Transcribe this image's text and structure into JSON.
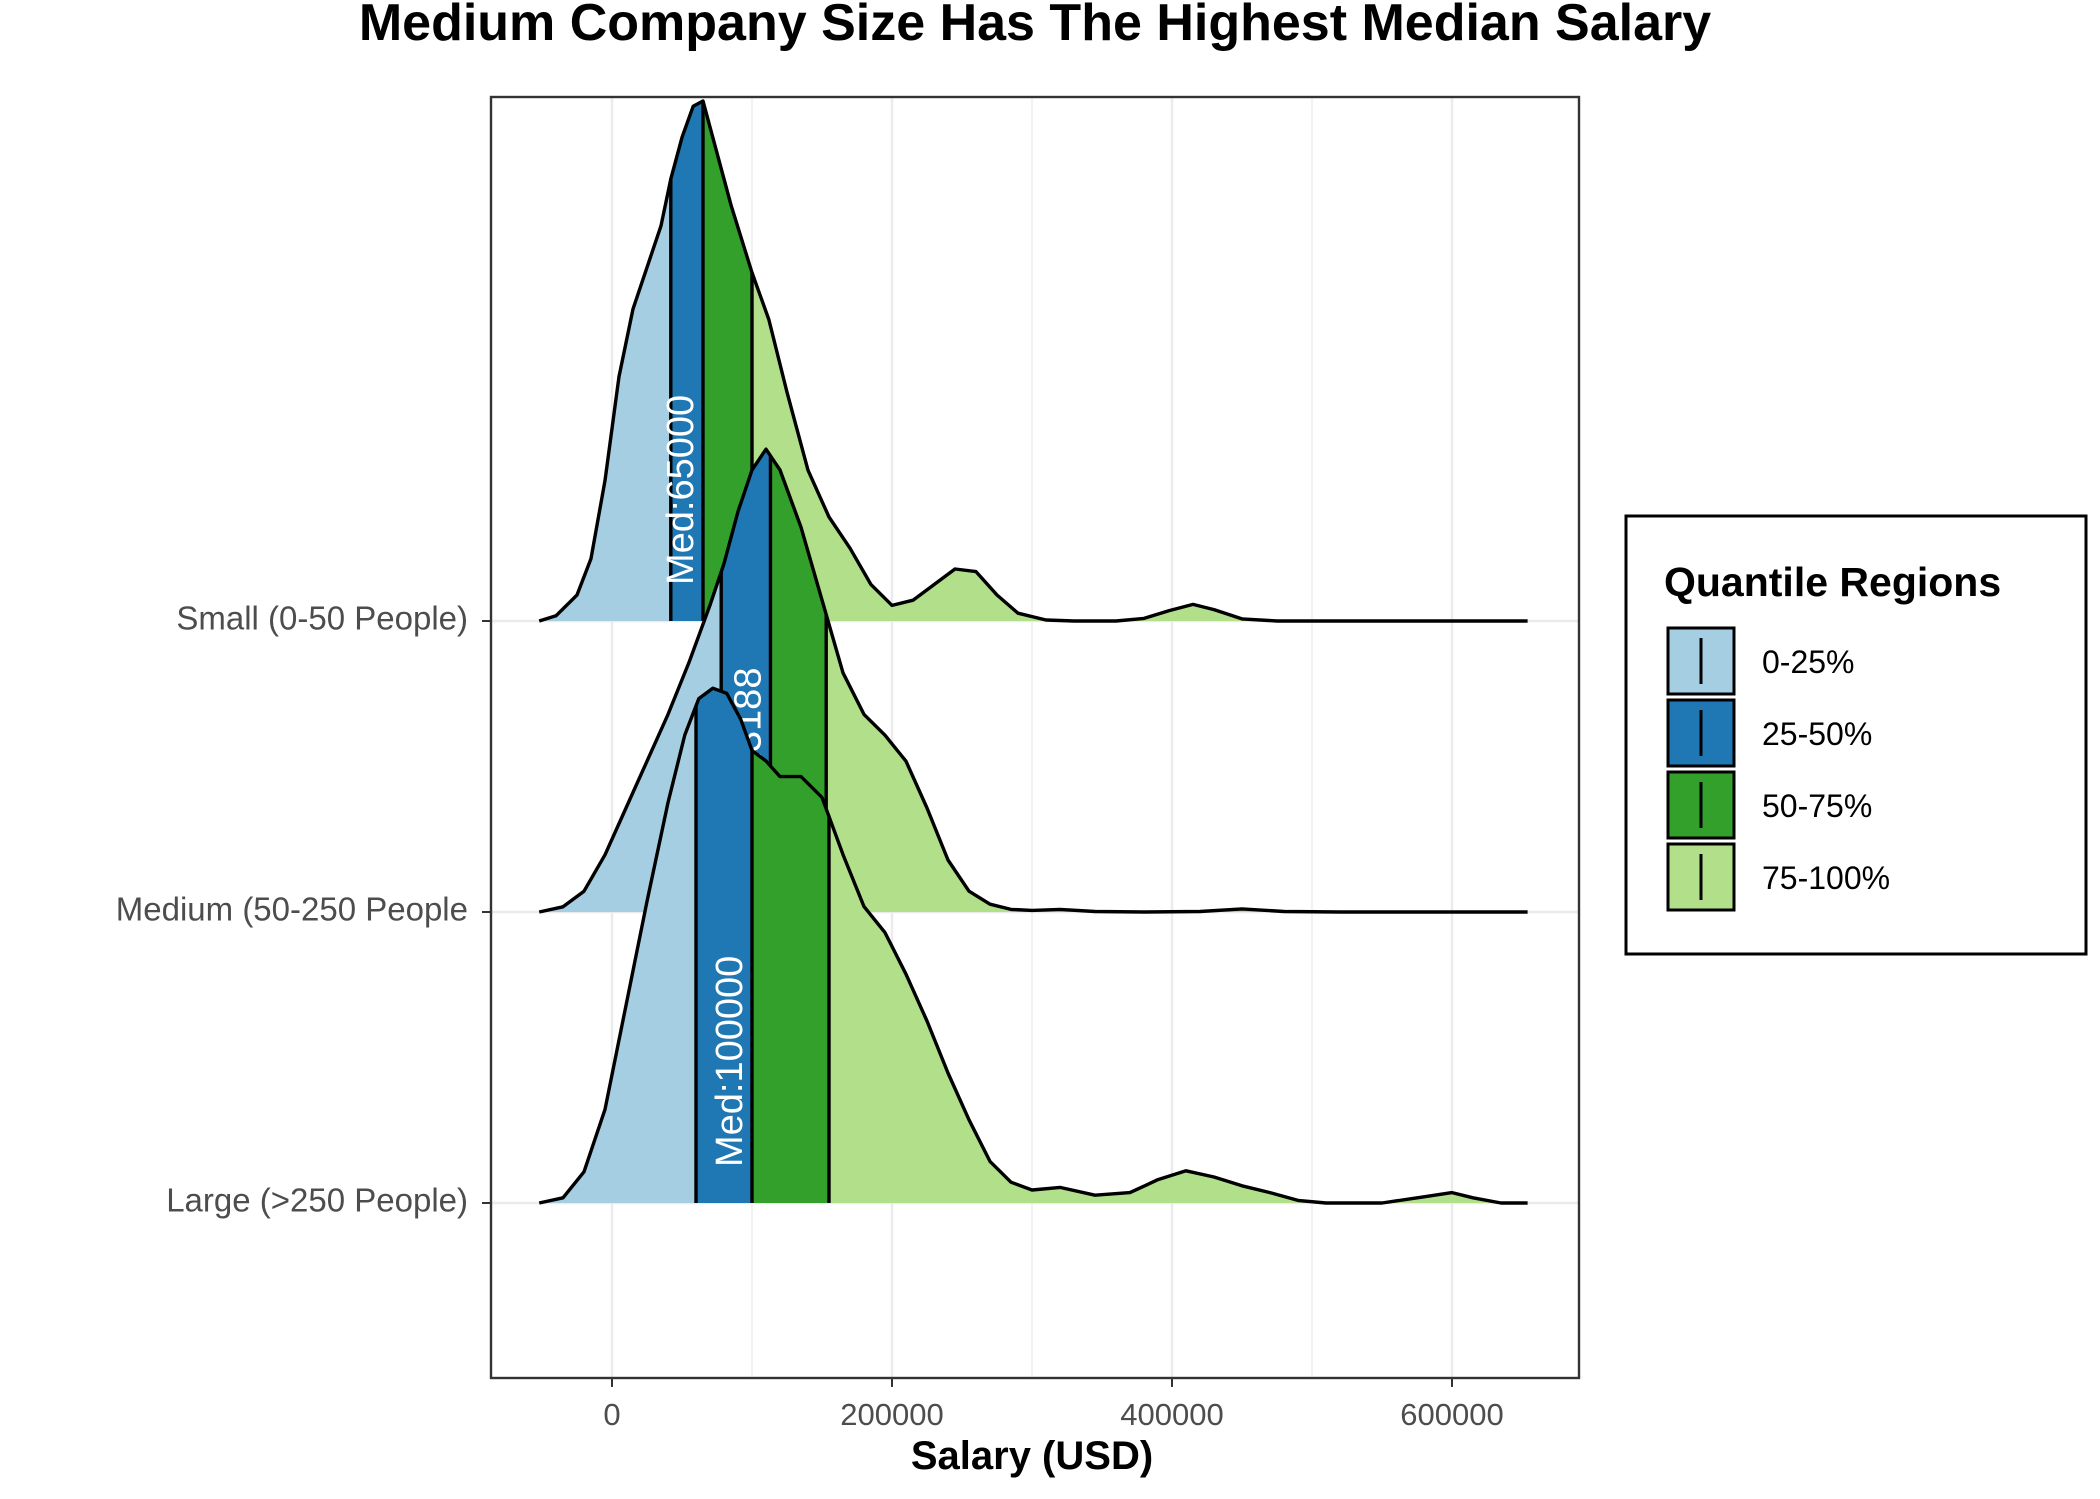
{
  "chart_data": {
    "type": "ridgeline",
    "title": "Medium Company Size Has The Highest Median Salary",
    "xlabel": "Salary (USD)",
    "ylabel": "",
    "xlim": [
      -70000,
      690000
    ],
    "x_ticks": [
      0,
      200000,
      400000,
      600000
    ],
    "x_tick_labels": [
      "0",
      "200000",
      "400000",
      "600000"
    ],
    "grid": true,
    "legend": {
      "title": "Quantile Regions",
      "position": "right",
      "entries": [
        {
          "label": "0-25%",
          "color": "#a6cee3"
        },
        {
          "label": "25-50%",
          "color": "#1f78b4"
        },
        {
          "label": "50-75%",
          "color": "#33a02c"
        },
        {
          "label": "75-100%",
          "color": "#b2df8a"
        }
      ]
    },
    "series": [
      {
        "name": "Small (0-50 People)",
        "quartiles": [
          42000,
          65000,
          100000
        ],
        "median_label": "Med:65000",
        "density": [
          [
            -52000,
            0.0
          ],
          [
            -40000,
            0.01
          ],
          [
            -25000,
            0.05
          ],
          [
            -15000,
            0.12
          ],
          [
            -5000,
            0.27
          ],
          [
            5000,
            0.47
          ],
          [
            15000,
            0.6
          ],
          [
            25000,
            0.68
          ],
          [
            35000,
            0.76
          ],
          [
            42000,
            0.85
          ],
          [
            50000,
            0.93
          ],
          [
            58000,
            0.99
          ],
          [
            65000,
            1.0
          ],
          [
            73000,
            0.92
          ],
          [
            85000,
            0.8
          ],
          [
            100000,
            0.67
          ],
          [
            112000,
            0.58
          ],
          [
            125000,
            0.44
          ],
          [
            140000,
            0.29
          ],
          [
            155000,
            0.2
          ],
          [
            170000,
            0.14
          ],
          [
            185000,
            0.07
          ],
          [
            200000,
            0.03
          ],
          [
            215000,
            0.04
          ],
          [
            230000,
            0.07
          ],
          [
            245000,
            0.1
          ],
          [
            260000,
            0.095
          ],
          [
            275000,
            0.05
          ],
          [
            290000,
            0.015
          ],
          [
            310000,
            0.002
          ],
          [
            330000,
            0.0
          ],
          [
            360000,
            0.0
          ],
          [
            380000,
            0.005
          ],
          [
            398000,
            0.02
          ],
          [
            415000,
            0.032
          ],
          [
            430000,
            0.022
          ],
          [
            450000,
            0.004
          ],
          [
            475000,
            0.0
          ],
          [
            560000,
            0.0
          ],
          [
            654000,
            0.0
          ]
        ]
      },
      {
        "name": "Medium (50-250 People",
        "quartiles": [
          78000,
          113188,
          153000
        ],
        "median_label": "Med:113188",
        "density": [
          [
            -52000,
            0.0
          ],
          [
            -35000,
            0.01
          ],
          [
            -20000,
            0.04
          ],
          [
            -5000,
            0.11
          ],
          [
            10000,
            0.2
          ],
          [
            25000,
            0.29
          ],
          [
            40000,
            0.38
          ],
          [
            55000,
            0.48
          ],
          [
            70000,
            0.59
          ],
          [
            80000,
            0.67
          ],
          [
            90000,
            0.77
          ],
          [
            100000,
            0.85
          ],
          [
            110000,
            0.89
          ],
          [
            120000,
            0.85
          ],
          [
            135000,
            0.74
          ],
          [
            150000,
            0.6
          ],
          [
            165000,
            0.46
          ],
          [
            180000,
            0.38
          ],
          [
            195000,
            0.34
          ],
          [
            210000,
            0.29
          ],
          [
            225000,
            0.2
          ],
          [
            240000,
            0.1
          ],
          [
            255000,
            0.04
          ],
          [
            270000,
            0.015
          ],
          [
            285000,
            0.005
          ],
          [
            300000,
            0.003
          ],
          [
            320000,
            0.005
          ],
          [
            345000,
            0.001
          ],
          [
            380000,
            0.0
          ],
          [
            420000,
            0.001
          ],
          [
            450000,
            0.006
          ],
          [
            480000,
            0.001
          ],
          [
            520000,
            0.0
          ],
          [
            600000,
            0.0
          ],
          [
            654000,
            0.0
          ]
        ]
      },
      {
        "name": "Large (>250 People)",
        "quartiles": [
          60000,
          100000,
          155000
        ],
        "median_label": "Med:100000",
        "density": [
          [
            -52000,
            0.0
          ],
          [
            -35000,
            0.01
          ],
          [
            -20000,
            0.06
          ],
          [
            -5000,
            0.18
          ],
          [
            10000,
            0.38
          ],
          [
            25000,
            0.58
          ],
          [
            40000,
            0.77
          ],
          [
            52000,
            0.9
          ],
          [
            62000,
            0.97
          ],
          [
            72000,
            0.99
          ],
          [
            82000,
            0.98
          ],
          [
            92000,
            0.93
          ],
          [
            100000,
            0.87
          ],
          [
            110000,
            0.85
          ],
          [
            120000,
            0.82
          ],
          [
            135000,
            0.82
          ],
          [
            150000,
            0.78
          ],
          [
            165000,
            0.67
          ],
          [
            180000,
            0.57
          ],
          [
            195000,
            0.52
          ],
          [
            210000,
            0.44
          ],
          [
            225000,
            0.35
          ],
          [
            240000,
            0.25
          ],
          [
            255000,
            0.16
          ],
          [
            270000,
            0.08
          ],
          [
            285000,
            0.04
          ],
          [
            300000,
            0.025
          ],
          [
            320000,
            0.03
          ],
          [
            345000,
            0.015
          ],
          [
            370000,
            0.02
          ],
          [
            390000,
            0.045
          ],
          [
            410000,
            0.062
          ],
          [
            430000,
            0.05
          ],
          [
            450000,
            0.033
          ],
          [
            470000,
            0.02
          ],
          [
            490000,
            0.005
          ],
          [
            510000,
            0.0
          ],
          [
            550000,
            0.0
          ],
          [
            580000,
            0.012
          ],
          [
            600000,
            0.02
          ],
          [
            615000,
            0.01
          ],
          [
            635000,
            0.0
          ],
          [
            654000,
            0.0
          ]
        ]
      }
    ]
  }
}
